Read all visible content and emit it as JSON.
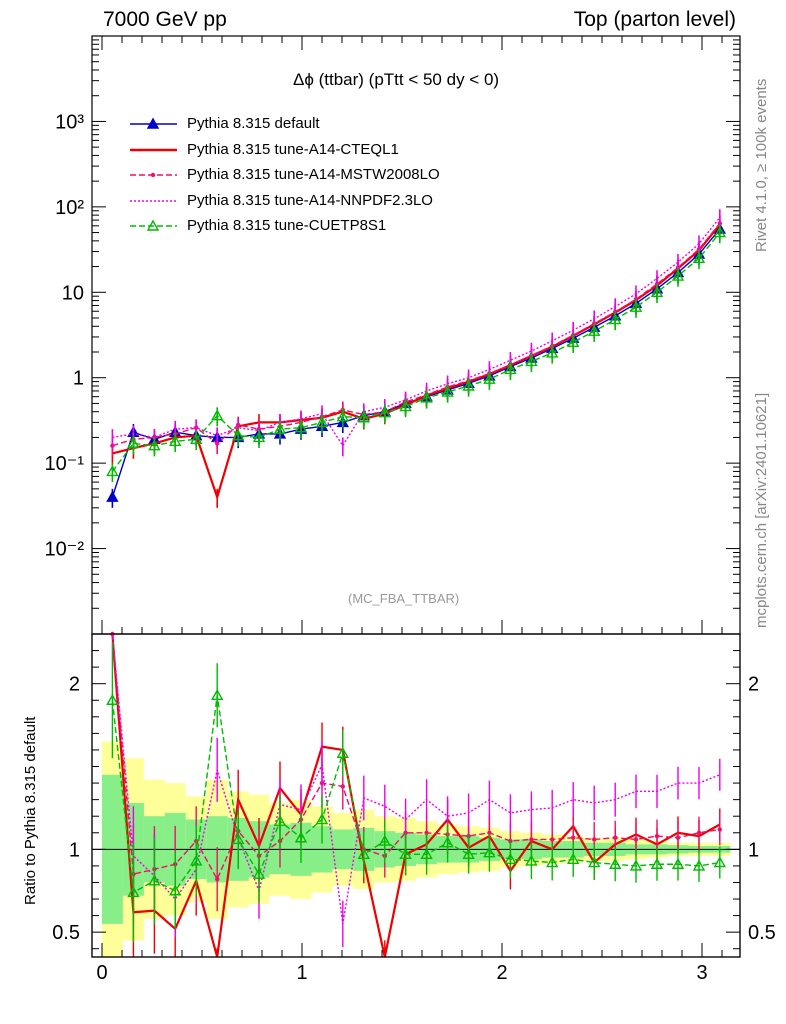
{
  "header": {
    "left": "7000 GeV pp",
    "right": "Top (parton level)"
  },
  "side": {
    "rivet": "Rivet 4.1.0, ≥ 100k events",
    "mcplots": "mcplots.cern.ch [arXiv:2401.10621]"
  },
  "colors": {
    "default": "#0000cc",
    "cteql1": "#ee0000",
    "mstw": "#ee1166",
    "nnpdf": "#ee00ee",
    "cuetp8s1": "#00bb00",
    "band_inner": "#88ee88",
    "band_outer": "#ffff99"
  },
  "chart_data": [
    {
      "type": "line",
      "title": "Δϕ (ttbar) (pTtt < 50 dy < 0)",
      "annotation": "(MC_FBA_TTBAR)",
      "yscale": "log",
      "xlim": [
        -0.05,
        3.19
      ],
      "ylim": [
        0.001,
        10000
      ],
      "yticks": [
        {
          "v": 0.01,
          "label": "10⁻²"
        },
        {
          "v": 0.1,
          "label": "10⁻¹"
        },
        {
          "v": 1,
          "label": "1"
        },
        {
          "v": 10,
          "label": "10"
        },
        {
          "v": 100,
          "label": "10²"
        },
        {
          "v": 1000,
          "label": "10³"
        }
      ],
      "legend_position": "top-left",
      "x": [
        0.052,
        0.157,
        0.262,
        0.366,
        0.471,
        0.576,
        0.681,
        0.785,
        0.89,
        0.995,
        1.1,
        1.204,
        1.309,
        1.414,
        1.518,
        1.623,
        1.728,
        1.833,
        1.937,
        2.042,
        2.147,
        2.251,
        2.356,
        2.461,
        2.566,
        2.67,
        2.775,
        2.88,
        2.985,
        3.089
      ],
      "series": [
        {
          "name": "Pythia 8.315 default",
          "key": "default",
          "style": "solid",
          "marker": "triangle-filled",
          "values": [
            0.04,
            0.23,
            0.19,
            0.23,
            0.21,
            0.2,
            0.2,
            0.22,
            0.22,
            0.25,
            0.27,
            0.3,
            0.36,
            0.4,
            0.5,
            0.6,
            0.72,
            0.86,
            1.05,
            1.35,
            1.7,
            2.2,
            2.9,
            3.9,
            5.3,
            7.4,
            11.0,
            17.0,
            28.0,
            55.0
          ]
        },
        {
          "name": "Pythia 8.315 tune-A14-CTEQL1",
          "key": "cteql1",
          "style": "solid",
          "marker": "none",
          "values": [
            0.13,
            0.15,
            0.17,
            0.2,
            0.21,
            0.04,
            0.27,
            0.3,
            0.3,
            0.32,
            0.34,
            0.4,
            0.33,
            0.38,
            0.48,
            0.62,
            0.75,
            0.9,
            1.1,
            1.4,
            1.8,
            2.3,
            3.1,
            4.2,
            5.8,
            8.1,
            12.0,
            19.0,
            31.0,
            62.0
          ]
        },
        {
          "name": "Pythia 8.315 tune-A14-MSTW2008LO",
          "key": "mstw",
          "style": "dash",
          "marker": "dot",
          "values": [
            0.16,
            0.19,
            0.2,
            0.22,
            0.26,
            0.17,
            0.28,
            0.25,
            0.27,
            0.3,
            0.35,
            0.42,
            0.37,
            0.4,
            0.52,
            0.63,
            0.78,
            0.92,
            1.12,
            1.42,
            1.82,
            2.35,
            3.15,
            4.3,
            5.9,
            8.3,
            12.5,
            19.5,
            32.0,
            64.0
          ]
        },
        {
          "name": "Pythia 8.315 tune-A14-NNPDF2.3LO",
          "key": "nnpdf",
          "style": "dot",
          "marker": "none",
          "values": [
            0.2,
            0.22,
            0.2,
            0.25,
            0.26,
            0.21,
            0.26,
            0.24,
            0.3,
            0.33,
            0.38,
            0.16,
            0.4,
            0.45,
            0.55,
            0.7,
            0.85,
            1.0,
            1.25,
            1.6,
            2.05,
            2.7,
            3.6,
            4.9,
            6.8,
            9.6,
            14.5,
            22.5,
            37.0,
            75.0
          ]
        },
        {
          "name": "Pythia 8.315 tune-CUETP8S1",
          "key": "cuetp8s1",
          "style": "dash",
          "marker": "triangle-open",
          "values": [
            0.08,
            0.17,
            0.16,
            0.18,
            0.19,
            0.36,
            0.21,
            0.2,
            0.25,
            0.26,
            0.3,
            0.35,
            0.34,
            0.39,
            0.46,
            0.58,
            0.68,
            0.8,
            0.96,
            1.25,
            1.55,
            1.95,
            2.6,
            3.5,
            4.8,
            6.7,
            10.0,
            15.5,
            25.0,
            50.0
          ]
        }
      ]
    },
    {
      "type": "line",
      "ylabel": "Ratio to Pythia 8.315 default",
      "xlim": [
        -0.05,
        3.19
      ],
      "ylim": [
        0.35,
        2.3
      ],
      "xticks": [
        0,
        1,
        2,
        3
      ],
      "yticks": [
        0.5,
        1,
        2
      ],
      "band_inner_halfwidth": [
        0.45,
        0.28,
        0.2,
        0.22,
        0.18,
        0.2,
        0.19,
        0.17,
        0.15,
        0.16,
        0.14,
        0.12,
        0.13,
        0.11,
        0.1,
        0.09,
        0.08,
        0.08,
        0.07,
        0.06,
        0.06,
        0.05,
        0.05,
        0.04,
        0.04,
        0.03,
        0.03,
        0.025,
        0.02,
        0.02
      ],
      "band_outer_halfwidth": [
        0.65,
        0.55,
        0.42,
        0.4,
        0.32,
        0.42,
        0.35,
        0.33,
        0.28,
        0.3,
        0.26,
        0.22,
        0.24,
        0.2,
        0.19,
        0.17,
        0.15,
        0.14,
        0.13,
        0.11,
        0.1,
        0.09,
        0.08,
        0.07,
        0.07,
        0.06,
        0.05,
        0.04,
        0.04,
        0.04
      ],
      "series": [
        {
          "key": "cteql1",
          "values": [
            3.2,
            0.62,
            0.63,
            0.52,
            0.81,
            0.21,
            1.3,
            1.02,
            1.37,
            1.21,
            1.62,
            1.6,
            0.93,
            0.32,
            0.97,
            1.03,
            1.18,
            1.01,
            1.08,
            0.87,
            1.05,
            1.0,
            1.14,
            0.92,
            1.03,
            1.09,
            1.03,
            1.1,
            1.08,
            1.15
          ]
        },
        {
          "key": "mstw",
          "values": [
            4.0,
            0.85,
            0.88,
            0.91,
            1.05,
            0.82,
            1.11,
            0.96,
            1.05,
            1.18,
            1.4,
            1.38,
            1.0,
            0.96,
            1.1,
            1.1,
            1.09,
            1.08,
            1.1,
            1.05,
            1.06,
            1.06,
            1.07,
            1.06,
            1.07,
            1.06,
            1.08,
            1.07,
            1.1,
            1.12
          ]
        },
        {
          "key": "nnpdf",
          "values": [
            3.0,
            0.96,
            0.84,
            0.7,
            0.88,
            1.48,
            1.07,
            0.75,
            1.27,
            1.24,
            1.51,
            0.55,
            1.31,
            1.26,
            1.18,
            1.3,
            1.2,
            1.22,
            1.3,
            1.22,
            1.24,
            1.25,
            1.3,
            1.28,
            1.3,
            1.35,
            1.35,
            1.4,
            1.4,
            1.45
          ]
        },
        {
          "key": "cuetp8s1",
          "values": [
            1.9,
            0.74,
            0.81,
            0.75,
            0.93,
            1.93,
            1.06,
            0.85,
            1.17,
            1.07,
            1.18,
            1.58,
            0.97,
            1.05,
            0.97,
            0.97,
            1.04,
            0.97,
            0.98,
            0.94,
            0.93,
            0.92,
            0.94,
            0.92,
            0.91,
            0.9,
            0.91,
            0.91,
            0.9,
            0.92
          ]
        }
      ]
    }
  ]
}
